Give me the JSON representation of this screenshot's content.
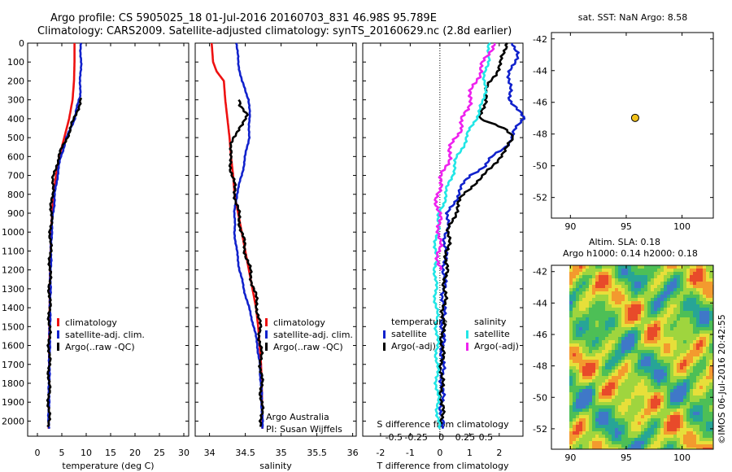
{
  "header": {
    "line1": "Argo profile: CS 5905025_18 01-Jul-2016 20160703_831 46.98S 95.789E",
    "line2": "Climatology: CARS2009. Satellite-adjusted climatology: synTS_20160629.nc (2.8d earlier)"
  },
  "depth_ticks": [
    "0",
    "100",
    "200",
    "300",
    "400",
    "500",
    "600",
    "700",
    "800",
    "900",
    "1000",
    "1100",
    "1200",
    "1300",
    "1400",
    "1500",
    "1600",
    "1700",
    "1800",
    "1900",
    "2000"
  ],
  "colors": {
    "climatology": "#ee1111",
    "satellite": "#1122cc",
    "argo": "#000000",
    "sat_s": "#22e6e6",
    "argo_s": "#ee22ee",
    "marker": "#f2c21a"
  },
  "chart_data": [
    {
      "type": "line",
      "xlabel": "temperature (deg C)",
      "xticks": [
        "0",
        "5",
        "10",
        "15",
        "20",
        "25",
        "30"
      ],
      "xlim": [
        -2,
        31
      ],
      "ylim": [
        2080,
        0
      ],
      "legend": [
        "climatology",
        "satellite-adj. clim.",
        "Argo(..raw -QC)"
      ],
      "series": [
        {
          "name": "climatology",
          "color": "#ee1111",
          "x": [
            7.6,
            7.6,
            7.5,
            7.2,
            6.5,
            5.5,
            4.5,
            3.8,
            3.3,
            3.0,
            2.8,
            2.6,
            2.5,
            2.4,
            2.4,
            2.3,
            2.3
          ],
          "y": [
            0,
            100,
            200,
            300,
            400,
            500,
            600,
            700,
            800,
            900,
            1000,
            1200,
            1400,
            1600,
            1800,
            1900,
            2040
          ]
        },
        {
          "name": "satellite-adj. clim.",
          "color": "#1122cc",
          "x": [
            8.9,
            8.9,
            8.8,
            8.7,
            8.5,
            7.6,
            6.0,
            4.8,
            4.1,
            3.6,
            3.2,
            2.9,
            2.7,
            2.6,
            2.5,
            2.4,
            2.35,
            2.3
          ],
          "y": [
            0,
            100,
            200,
            280,
            300,
            400,
            500,
            600,
            700,
            800,
            900,
            1000,
            1200,
            1400,
            1600,
            1800,
            1900,
            2040
          ]
        },
        {
          "name": "Argo(..raw -QC)",
          "color": "#000000",
          "x": [
            9.0,
            8.2,
            7.6,
            6.8,
            6.0,
            5.2,
            4.4,
            3.8,
            3.4,
            3.0,
            2.7,
            2.5,
            2.4,
            2.3
          ],
          "y": [
            290,
            350,
            400,
            450,
            500,
            550,
            600,
            650,
            700,
            800,
            1000,
            1300,
            1700,
            2030
          ]
        }
      ]
    },
    {
      "type": "line",
      "xlabel": "salinity",
      "xticks": [
        "34",
        "34.5",
        "35",
        "35.5",
        "36"
      ],
      "xlim": [
        33.8,
        36.05
      ],
      "ylim": [
        2080,
        0
      ],
      "legend": [
        "climatology",
        "satellite-adj. clim.",
        "Argo(..raw -QC)"
      ],
      "annotations": [
        "Argo Australia",
        "PI: Susan Wijffels"
      ],
      "series": [
        {
          "name": "climatology",
          "color": "#ee1111",
          "x": [
            34.03,
            34.05,
            34.1,
            34.2,
            34.22,
            34.25,
            34.28,
            34.3,
            34.33,
            34.35,
            34.4,
            34.45,
            34.5,
            34.55,
            34.6,
            34.65,
            34.68,
            34.7,
            34.72,
            34.73,
            34.74
          ],
          "y": [
            0,
            100,
            150,
            200,
            300,
            400,
            500,
            600,
            700,
            800,
            900,
            1000,
            1100,
            1200,
            1300,
            1400,
            1500,
            1600,
            1700,
            1800,
            2040
          ]
        },
        {
          "name": "satellite-adj. clim.",
          "color": "#1122cc",
          "x": [
            34.38,
            34.4,
            34.45,
            34.5,
            34.55,
            34.56,
            34.55,
            34.5,
            34.45,
            34.38,
            34.35,
            34.35,
            34.38,
            34.42,
            34.48,
            34.55,
            34.62,
            34.67,
            34.7,
            34.72,
            34.73,
            34.74
          ],
          "y": [
            0,
            100,
            200,
            250,
            300,
            400,
            500,
            600,
            700,
            800,
            900,
            1000,
            1100,
            1200,
            1300,
            1400,
            1500,
            1600,
            1700,
            1800,
            1900,
            2040
          ]
        },
        {
          "name": "Argo(..raw -QC)",
          "color": "#000000",
          "x": [
            34.4,
            34.42,
            34.48,
            34.55,
            34.4,
            34.35,
            34.3,
            34.28,
            34.3,
            34.32,
            34.36,
            34.4,
            34.45,
            34.5,
            34.56,
            34.62,
            34.67,
            34.7,
            34.72,
            34.73
          ],
          "y": [
            300,
            330,
            350,
            380,
            450,
            500,
            550,
            600,
            650,
            700,
            800,
            900,
            1000,
            1100,
            1200,
            1300,
            1400,
            1500,
            1700,
            2030
          ]
        }
      ]
    },
    {
      "type": "line",
      "xlabel": "T difference from climatology",
      "xticks": [
        "-2",
        "-1",
        "0",
        "1",
        "2"
      ],
      "xlim": [
        -2.6,
        2.8
      ],
      "second_axis_label": "S difference from climatology",
      "second_axis_ticks": [
        "-0.5",
        "-0.25",
        "0",
        "0.25",
        "0.5"
      ],
      "ylim": [
        2080,
        0
      ],
      "legend_titles": [
        "temperature",
        "salinity"
      ],
      "legend": [
        "satellite",
        "Argo(-adj)",
        "satellite",
        "Argo(-adj)"
      ],
      "series": [
        {
          "name": "satellite",
          "color": "#1122cc",
          "x": [
            2.5,
            2.6,
            2.5,
            2.3,
            2.4,
            2.8,
            2.6,
            2.4,
            2.2,
            1.8,
            1.5,
            1.0,
            0.6,
            0.3,
            0.2,
            0.15,
            0.1,
            0.08,
            0.05
          ],
          "y": [
            0,
            50,
            100,
            200,
            300,
            400,
            450,
            500,
            550,
            600,
            650,
            700,
            800,
            900,
            1000,
            1200,
            1500,
            1800,
            2040
          ]
        },
        {
          "name": "Argo(-adj)",
          "color": "#000000",
          "x": [
            2.2,
            2.1,
            1.7,
            1.5,
            1.4,
            2.1,
            2.5,
            2.3,
            2.0,
            1.8,
            1.5,
            1.1,
            0.8,
            0.5,
            0.3,
            0.2,
            0.1,
            0.05,
            0.08
          ],
          "y": [
            0,
            100,
            200,
            300,
            400,
            450,
            500,
            550,
            600,
            650,
            700,
            750,
            800,
            900,
            1000,
            1200,
            1500,
            1800,
            2030
          ]
        },
        {
          "name": "satellite S",
          "color": "#22e6e6",
          "x": [
            1.7,
            1.6,
            1.5,
            1.5,
            1.2,
            0.9,
            0.6,
            0.4,
            0.2,
            0.0,
            -0.1,
            -0.15,
            -0.15,
            -0.1,
            -0.1,
            -0.05
          ],
          "y": [
            0,
            100,
            200,
            300,
            400,
            500,
            600,
            700,
            800,
            900,
            1000,
            1100,
            1300,
            1500,
            1800,
            2040
          ]
        },
        {
          "name": "Argo(-adj) S",
          "color": "#ee22ee",
          "x": [
            1.8,
            1.5,
            1.2,
            1.0,
            0.8,
            0.7,
            0.5,
            0.3,
            0.1,
            -0.1,
            -0.05,
            0.0,
            -0.05,
            0.0
          ],
          "y": [
            0,
            100,
            200,
            300,
            400,
            450,
            500,
            600,
            700,
            800,
            900,
            1000,
            1100,
            1200
          ]
        }
      ]
    },
    {
      "type": "scatter",
      "title": "sat. SST: NaN Argo: 8.58",
      "xticks": [
        "90",
        "95",
        "100"
      ],
      "yticks": [
        "-42",
        "-44",
        "-46",
        "-48",
        "-50",
        "-52"
      ],
      "xlim": [
        88.3,
        102.8
      ],
      "ylim": [
        -53.3,
        -41.6
      ],
      "points": [
        {
          "x": 95.8,
          "y": -46.98
        }
      ]
    },
    {
      "type": "heatmap",
      "title_line1": "Altim. SLA: 0.18",
      "title_line2": "Argo h1000: 0.14 h2000: 0.18",
      "xticks": [
        "90",
        "95",
        "100"
      ],
      "yticks": [
        "-42",
        "-44",
        "-46",
        "-48",
        "-50",
        "-52"
      ],
      "xlim": [
        88.3,
        102.8
      ],
      "ylim": [
        -53.3,
        -41.6
      ],
      "side_label": "©IMOS 06-Jul-2016 20:42:55"
    }
  ]
}
